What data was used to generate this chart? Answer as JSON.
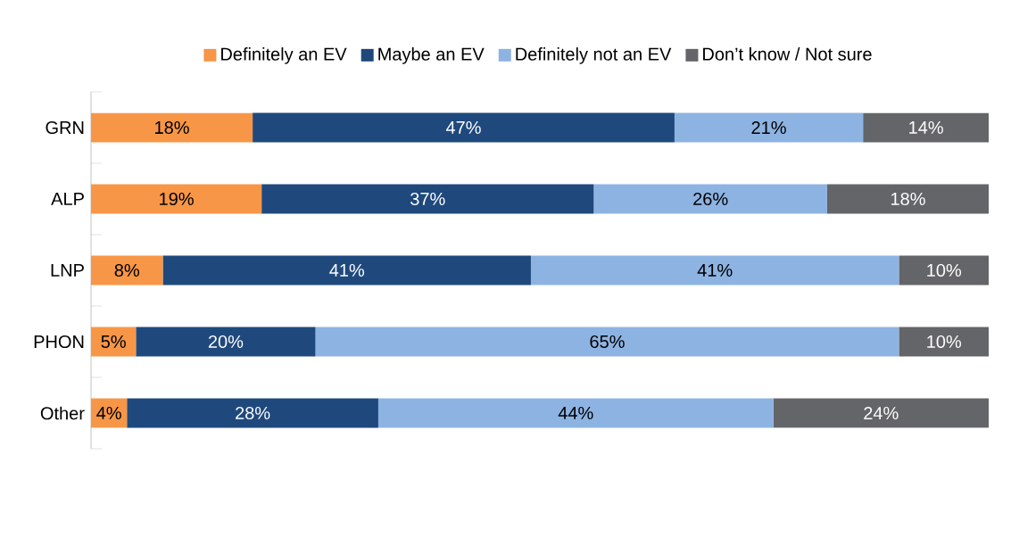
{
  "chart_data": {
    "type": "bar",
    "orientation": "horizontal",
    "stacked": true,
    "legend": "top",
    "categories": [
      "GRN",
      "ALP",
      "LNP",
      "PHON",
      "Other"
    ],
    "series": [
      {
        "name": "Definitely an EV",
        "color": "#f79646",
        "values": [
          18,
          19,
          8,
          5,
          4
        ],
        "value_labels": [
          "18%",
          "19%",
          "8%",
          "5%",
          "4%"
        ]
      },
      {
        "name": "Maybe an EV",
        "color": "#1f497d",
        "values": [
          47,
          37,
          41,
          20,
          28
        ],
        "value_labels": [
          "47%",
          "37%",
          "41%",
          "20%",
          "28%"
        ]
      },
      {
        "name": "Definitely not an EV",
        "color": "#8db3e2",
        "values": [
          21,
          26,
          41,
          65,
          44
        ],
        "value_labels": [
          "21%",
          "26%",
          "41%",
          "65%",
          "44%"
        ]
      },
      {
        "name": "Don’t know / Not sure",
        "color": "#646569",
        "values": [
          14,
          18,
          10,
          10,
          24
        ],
        "value_labels": [
          "14%",
          "18%",
          "10%",
          "10%",
          "24%"
        ]
      }
    ]
  }
}
